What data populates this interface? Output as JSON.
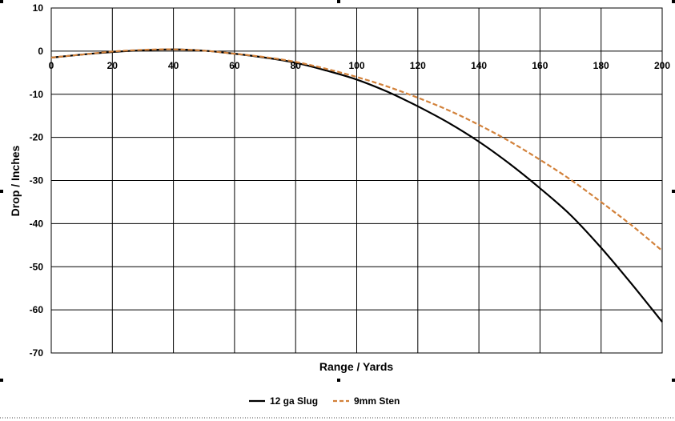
{
  "chart_data": {
    "type": "line",
    "xlabel": "Range / Yards",
    "ylabel": "Drop / Inches",
    "xlim": [
      0,
      200
    ],
    "ylim": [
      -70,
      10
    ],
    "x_ticks": [
      0,
      20,
      40,
      60,
      80,
      100,
      120,
      140,
      160,
      180,
      200
    ],
    "y_ticks": [
      10,
      0,
      -10,
      -20,
      -30,
      -40,
      -50,
      -60,
      -70
    ],
    "grid": true,
    "legend_position": "bottom",
    "x": [
      0,
      10,
      20,
      30,
      40,
      50,
      60,
      70,
      80,
      90,
      100,
      110,
      120,
      130,
      140,
      150,
      160,
      170,
      180,
      190,
      200
    ],
    "series": [
      {
        "name": "12 ga Slug",
        "color": "#000000",
        "style": "solid",
        "values": [
          -1.5,
          -0.8,
          -0.2,
          0.2,
          0.4,
          0.1,
          -0.6,
          -1.5,
          -2.7,
          -4.5,
          -6.6,
          -9.4,
          -12.8,
          -16.6,
          -21.0,
          -26.1,
          -31.8,
          -38.0,
          -45.6,
          -54.0,
          -62.8
        ]
      },
      {
        "name": "9mm Sten",
        "color": "#D2813A",
        "style": "dashed",
        "values": [
          -1.5,
          -0.8,
          -0.1,
          0.3,
          0.4,
          0.1,
          -0.6,
          -1.4,
          -2.5,
          -4.1,
          -6.0,
          -8.2,
          -10.8,
          -13.7,
          -17.1,
          -20.9,
          -25.2,
          -29.8,
          -35.0,
          -40.4,
          -46.3
        ]
      }
    ]
  },
  "icons": {
    "selection_handles": "selection-handle-icon"
  }
}
